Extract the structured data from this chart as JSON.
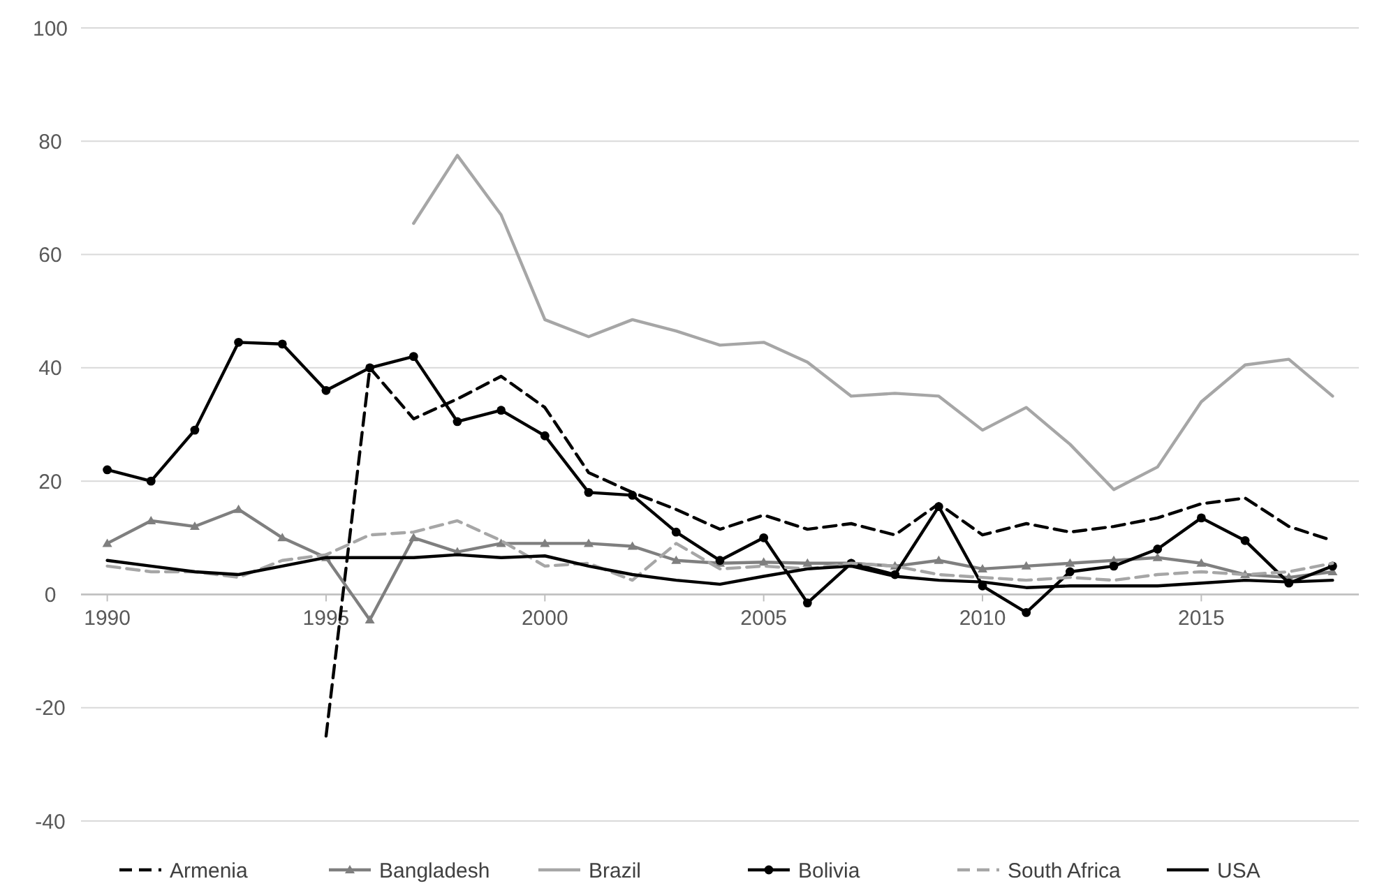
{
  "chart_data": {
    "type": "line",
    "x": [
      1990,
      1991,
      1992,
      1993,
      1994,
      1995,
      1996,
      1997,
      1998,
      1999,
      2000,
      2001,
      2002,
      2003,
      2004,
      2005,
      2006,
      2007,
      2008,
      2009,
      2010,
      2011,
      2012,
      2013,
      2014,
      2015,
      2016,
      2017,
      2018
    ],
    "xlim": [
      1989.4,
      2018.6
    ],
    "xticks": [
      1990,
      1995,
      2000,
      2005,
      2010,
      2015
    ],
    "ylim": [
      -40,
      100
    ],
    "yticks": [
      -40,
      -20,
      0,
      20,
      40,
      60,
      80,
      100
    ],
    "grid": "y",
    "legend": "bottom",
    "series": [
      {
        "name": "Armenia",
        "color": "#000000",
        "line_style": "dashed",
        "marker": "none",
        "values": [
          null,
          null,
          null,
          null,
          null,
          -25,
          40,
          31,
          34.5,
          38.5,
          33,
          21.5,
          18,
          15,
          11.5,
          14,
          11.5,
          12.5,
          10.5,
          16,
          10.5,
          12.5,
          11,
          12,
          13.5,
          16,
          17,
          12,
          9.5
        ]
      },
      {
        "name": "Bangladesh",
        "color": "#7f7f7f",
        "line_style": "solid",
        "marker": "triangle",
        "values": [
          9,
          13,
          12,
          15,
          10,
          6.5,
          -4.5,
          10,
          7.5,
          9,
          9,
          9,
          8.5,
          6,
          5.5,
          5.7,
          5.5,
          5.5,
          5,
          6,
          4.5,
          5,
          5.5,
          6,
          6.5,
          5.5,
          3.5,
          3,
          4
        ]
      },
      {
        "name": "Brazil",
        "color": "#a6a6a6",
        "line_style": "solid",
        "marker": "none",
        "values": [
          null,
          null,
          null,
          null,
          null,
          null,
          null,
          65.5,
          77.5,
          67,
          48.5,
          45.5,
          48.5,
          46.5,
          44,
          44.5,
          41,
          35,
          35.5,
          35,
          29,
          33,
          26.5,
          18.5,
          22.5,
          34,
          40.5,
          41.5,
          35
        ]
      },
      {
        "name": "Bolivia",
        "color": "#000000",
        "line_style": "solid",
        "marker": "circle",
        "values": [
          22,
          20,
          29,
          44.5,
          44.2,
          36,
          40,
          42,
          30.5,
          32.5,
          28,
          18,
          17.5,
          11,
          6,
          10,
          -1.5,
          5.5,
          3.5,
          15.5,
          1.5,
          -3.2,
          4,
          5,
          8,
          13.5,
          9.5,
          2,
          5
        ]
      },
      {
        "name": "South Africa",
        "color": "#a6a6a6",
        "line_style": "dashed",
        "marker": "none",
        "values": [
          5,
          4,
          4,
          3,
          6,
          7,
          10.5,
          11,
          13,
          9.5,
          5,
          5.5,
          2.5,
          9,
          4.5,
          5,
          4.5,
          5.5,
          5,
          3.5,
          3,
          2.5,
          3,
          2.5,
          3.5,
          4,
          3.5,
          4,
          5.5
        ]
      },
      {
        "name": "USA",
        "color": "#000000",
        "line_style": "solid",
        "marker": "none",
        "values": [
          6,
          5,
          4,
          3.5,
          5,
          6.5,
          6.5,
          6.5,
          7,
          6.5,
          6.8,
          5,
          3.5,
          2.5,
          1.8,
          3.2,
          4.5,
          5,
          3.2,
          2.5,
          2.2,
          1.2,
          1.5,
          1.5,
          1.5,
          2,
          2.5,
          2.2,
          2.5
        ]
      }
    ]
  }
}
